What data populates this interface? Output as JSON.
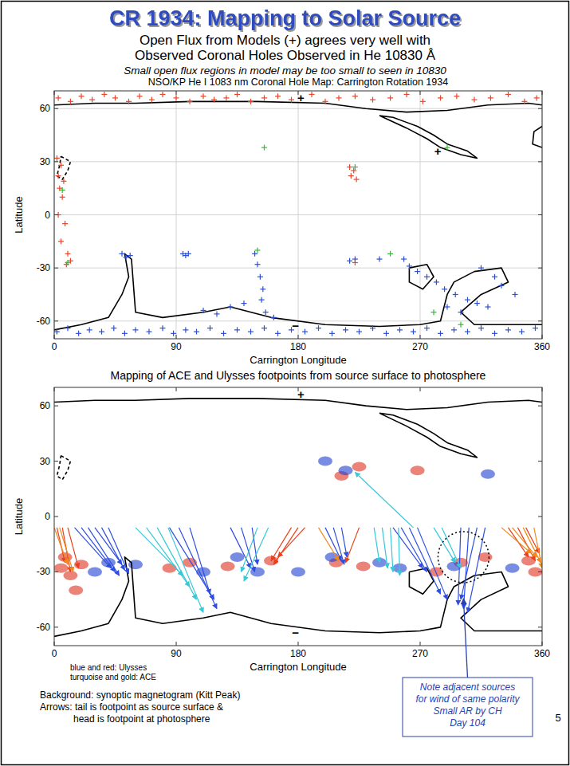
{
  "slide": {
    "title": "CR 1934: Mapping to Solar Source",
    "subtitle": [
      "Open Flux from Models (+) agrees very well with",
      "Observed Coronal Holes Observed in He 10830 Å"
    ],
    "note": "Small open flux regions in model may be too small to seen in 10830",
    "legend_notes": [
      "blue and red: Ulysses",
      "turquoise and gold: ACE"
    ],
    "caption": [
      "Background: synoptic magnetogram (Kitt Peak)",
      "Arrows: tail is footpoint as source surface &",
      "head is footpoint at photosphere"
    ],
    "callout": {
      "lines": [
        "Note adjacent sources",
        "for wind of same polarity",
        "Small AR by CH",
        "Day 104"
      ],
      "x": 302,
      "y": -22
    },
    "page_number": 5
  },
  "chart_data": [
    {
      "type": "scatter",
      "title": "NSO/KP He I 1083 nm Coronal Hole Map: Carrington Rotation 1934",
      "x_label": "Carrington Longitude",
      "y_label": "Latitude",
      "xlim": [
        0,
        360
      ],
      "ylim": [
        -70,
        70
      ],
      "xticks": [
        0,
        90,
        180,
        270,
        360
      ],
      "yticks": [
        -60,
        -30,
        0,
        30,
        60
      ],
      "grid": true,
      "annotations": [
        {
          "text": "+",
          "x": 182,
          "y": 66
        },
        {
          "text": "+",
          "x": 283,
          "y": 36
        },
        {
          "text": "−",
          "x": 178,
          "y": -63
        }
      ],
      "series": [
        {
          "type": "scatter",
          "marker": "plus",
          "color": "#e8462a",
          "x": [
            3,
            12,
            20,
            28,
            37,
            45,
            55,
            63,
            72,
            80,
            90,
            100,
            110,
            118,
            127,
            135,
            145,
            155,
            165,
            175,
            190,
            200,
            210,
            222,
            235,
            248,
            260,
            272,
            285,
            297,
            310,
            322,
            335,
            347,
            356,
            2,
            5,
            3,
            7,
            4,
            6,
            3,
            8,
            5,
            10,
            12,
            9,
            218,
            221,
            219,
            223,
            222
          ],
          "values": [
            66,
            64,
            67,
            65,
            68,
            66,
            64,
            67,
            65,
            68,
            66,
            64,
            67,
            65,
            66,
            68,
            64,
            66,
            67,
            65,
            68,
            64,
            66,
            67,
            65,
            66,
            68,
            64,
            66,
            67,
            65,
            66,
            68,
            64,
            66,
            32,
            28,
            22,
            19,
            15,
            10,
            0,
            -5,
            -15,
            -22,
            -26,
            -28,
            27,
            25,
            22,
            20,
            -27
          ]
        },
        {
          "type": "scatter",
          "marker": "plus",
          "color": "#2c4fd8",
          "x": [
            2,
            10,
            18,
            26,
            35,
            44,
            52,
            60,
            70,
            80,
            88,
            97,
            105,
            115,
            125,
            135,
            145,
            155,
            165,
            175,
            185,
            195,
            205,
            215,
            225,
            235,
            245,
            255,
            265,
            275,
            285,
            295,
            305,
            315,
            325,
            335,
            345,
            355,
            50,
            53,
            56,
            95,
            97,
            99,
            148,
            150,
            152,
            154,
            153,
            156,
            162,
            120,
            130,
            140,
            110,
            218,
            222,
            240,
            258,
            262,
            268,
            275,
            282,
            288,
            296,
            305,
            312,
            320,
            300,
            290,
            330,
            340,
            325,
            315
          ],
          "values": [
            -66,
            -64,
            -67,
            -65,
            -66,
            -64,
            -67,
            -65,
            -66,
            -64,
            -67,
            -65,
            -66,
            -64,
            -67,
            -65,
            -66,
            -64,
            -67,
            -65,
            -66,
            -64,
            -67,
            -65,
            -66,
            -64,
            -67,
            -65,
            -66,
            -64,
            -67,
            -65,
            -66,
            -64,
            -67,
            -65,
            -66,
            -64,
            -22,
            -24,
            -23,
            -22,
            -23,
            -22,
            -22,
            -28,
            -35,
            -42,
            -48,
            -55,
            -58,
            -56,
            -52,
            -50,
            -54,
            -26,
            -25,
            -25,
            -25,
            -29,
            -32,
            -35,
            -38,
            -42,
            -45,
            -48,
            -50,
            -52,
            -55,
            -52,
            -40,
            -45,
            -35,
            -30
          ]
        },
        {
          "type": "scatter",
          "marker": "plus",
          "color": "#33bb33",
          "x": [
            6,
            10,
            155,
            150,
            222,
            290,
            248,
            280,
            300
          ],
          "values": [
            14,
            -27,
            38,
            -20,
            27,
            38,
            -22,
            -55,
            -62
          ]
        },
        {
          "type": "line",
          "line_style": "solid",
          "color": "#000000",
          "x": [
            0,
            30,
            60,
            100,
            150,
            200,
            230,
            260,
            290,
            320,
            350,
            360
          ],
          "values": [
            62,
            63,
            63,
            64,
            64,
            63,
            60,
            58,
            59,
            62,
            63,
            62
          ]
        },
        {
          "type": "line",
          "line_style": "solid",
          "color": "#000000",
          "x": [
            240,
            260,
            275,
            285,
            300,
            312,
            305,
            290,
            280,
            268,
            250,
            240
          ],
          "values": [
            56,
            49,
            43,
            38,
            34,
            32,
            36,
            40,
            45,
            50,
            55,
            56
          ]
        },
        {
          "type": "line",
          "line_style": "dashed",
          "color": "#000000",
          "x": [
            5,
            12,
            10,
            6,
            2,
            4,
            5
          ],
          "values": [
            33,
            30,
            25,
            20,
            22,
            28,
            33
          ]
        },
        {
          "type": "line",
          "line_style": "solid",
          "color": "#000000",
          "x": [
            0,
            20,
            40,
            50,
            55,
            52,
            57,
            60,
            80,
            110,
            130,
            160,
            200,
            240,
            270,
            285,
            290,
            295,
            310,
            330,
            335,
            315,
            300,
            310,
            340,
            360
          ],
          "values": [
            -65,
            -62,
            -58,
            -45,
            -35,
            -22,
            -25,
            -55,
            -58,
            -55,
            -52,
            -58,
            -62,
            -63,
            -62,
            -60,
            -45,
            -38,
            -32,
            -30,
            -38,
            -45,
            -55,
            -62,
            -62,
            -62
          ]
        },
        {
          "type": "line",
          "line_style": "solid",
          "color": "#000000",
          "x": [
            262,
            275,
            280,
            272,
            262,
            262
          ],
          "values": [
            -30,
            -28,
            -35,
            -42,
            -38,
            -30
          ]
        },
        {
          "type": "line",
          "line_style": "solid",
          "color": "#000000",
          "x": [
            360,
            354,
            353,
            360
          ],
          "values": [
            50,
            47,
            40,
            38
          ]
        }
      ]
    },
    {
      "type": "scatter",
      "title": "Mapping of ACE and Ulysses footpoints from source surface to photosphere",
      "x_label": "Carrington Longitude",
      "y_label": "Latitude",
      "xlim": [
        0,
        360
      ],
      "ylim": [
        -70,
        70
      ],
      "xticks": [
        0,
        90,
        180,
        270,
        360
      ],
      "yticks": [
        -60,
        -30,
        0,
        30,
        60
      ],
      "grid": false,
      "annotations": [
        {
          "text": "+",
          "x": 182,
          "y": 66
        },
        {
          "text": "−",
          "x": 178,
          "y": -63
        }
      ],
      "series": [
        {
          "type": "blob",
          "marker": "ellipse",
          "color": "#e03020",
          "x": [
            5,
            12,
            20,
            8,
            16,
            85,
            100,
            128,
            160,
            212,
            225,
            208,
            228,
            268,
            282,
            300,
            318,
            350,
            355
          ],
          "values": [
            -28,
            -32,
            -26,
            -22,
            -40,
            -28,
            -25,
            -27,
            -24,
            22,
            27,
            -25,
            -27,
            25,
            -30,
            -25,
            -22,
            -24,
            -30
          ]
        },
        {
          "type": "blob",
          "marker": "ellipse",
          "color": "#2040d0",
          "x": [
            30,
            40,
            110,
            135,
            150,
            200,
            215,
            205,
            240,
            255,
            295,
            320,
            338,
            60,
            180
          ],
          "values": [
            -30,
            -25,
            -30,
            -22,
            -30,
            30,
            25,
            -22,
            -25,
            -28,
            -27,
            23,
            -28,
            -26,
            -30
          ]
        },
        {
          "type": "line",
          "line_style": "solid",
          "color": "#000000",
          "x": [
            0,
            30,
            60,
            100,
            150,
            200,
            230,
            260,
            290,
            320,
            350,
            360
          ],
          "values": [
            62,
            63,
            63,
            64,
            64,
            63,
            60,
            58,
            59,
            62,
            63,
            62
          ]
        },
        {
          "type": "line",
          "line_style": "solid",
          "color": "#000000",
          "x": [
            240,
            260,
            275,
            285,
            300,
            312,
            305,
            290,
            280,
            268,
            250,
            240
          ],
          "values": [
            56,
            49,
            43,
            38,
            34,
            32,
            36,
            40,
            45,
            50,
            55,
            56
          ]
        },
        {
          "type": "line",
          "line_style": "dashed",
          "color": "#000000",
          "x": [
            5,
            12,
            10,
            6,
            2,
            4,
            5
          ],
          "values": [
            33,
            30,
            25,
            20,
            22,
            28,
            33
          ]
        },
        {
          "type": "line",
          "line_style": "solid",
          "color": "#000000",
          "x": [
            0,
            20,
            40,
            50,
            55,
            52,
            57,
            60,
            80,
            110,
            130,
            160,
            200,
            240,
            270,
            285,
            290,
            295,
            310,
            330,
            335,
            315,
            300,
            310,
            340,
            360
          ],
          "values": [
            -65,
            -62,
            -58,
            -45,
            -35,
            -22,
            -25,
            -55,
            -58,
            -55,
            -52,
            -58,
            -62,
            -63,
            -62,
            -60,
            -45,
            -38,
            -32,
            -30,
            -38,
            -45,
            -55,
            -62,
            -62,
            -62
          ]
        },
        {
          "type": "line",
          "line_style": "solid",
          "color": "#000000",
          "x": [
            262,
            275,
            280,
            272,
            262,
            262
          ],
          "values": [
            -30,
            -28,
            -35,
            -42,
            -38,
            -30
          ]
        },
        {
          "type": "arrow",
          "color": "#2d4ee0",
          "tail_latitude": -6,
          "x": [
            15,
            20,
            25,
            30,
            35,
            40,
            85,
            92,
            100,
            130,
            138,
            146,
            200,
            206,
            212,
            250,
            256,
            262,
            268,
            300,
            306,
            312,
            318
          ],
          "head_x": [
            42,
            45,
            48,
            50,
            52,
            55,
            118,
            120,
            115,
            145,
            148,
            150,
            212,
            214,
            216,
            272,
            275,
            285,
            290,
            298,
            302,
            300,
            305
          ],
          "values": [
            -28,
            -30,
            -32,
            -26,
            -29,
            -31,
            -45,
            -50,
            -42,
            -28,
            -30,
            -26,
            -24,
            -26,
            -22,
            -28,
            -30,
            -42,
            -45,
            -48,
            -50,
            -45,
            -52
          ]
        },
        {
          "type": "arrow",
          "color": "#e8401c",
          "tail_latitude": -6,
          "x": [
            2,
            6,
            10,
            175,
            180,
            185,
            225,
            335,
            342,
            348
          ],
          "head_x": [
            8,
            12,
            18,
            160,
            162,
            165,
            215,
            350,
            355,
            358
          ],
          "values": [
            -25,
            -30,
            -28,
            -24,
            -26,
            -22,
            -25,
            -22,
            -24,
            -20
          ]
        },
        {
          "type": "arrow",
          "color": "#38c8d8",
          "tail_latitude": -6,
          "x": [
            60,
            68,
            76,
            84,
            150,
            158,
            236,
            242,
            248,
            254,
            265,
            280,
            286
          ],
          "head_x": [
            95,
            100,
            105,
            110,
            138,
            140,
            240,
            246,
            250,
            255,
            222,
            296,
            300
          ],
          "values": [
            -32,
            -38,
            -45,
            -52,
            -30,
            -35,
            -25,
            -28,
            -30,
            -32,
            24,
            -25,
            -28
          ]
        },
        {
          "type": "arrow",
          "color": "#f08a1c",
          "tail_latitude": -6,
          "x": [
            0,
            4,
            195,
            330,
            338,
            346,
            354
          ],
          "head_x": [
            10,
            14,
            210,
            352,
            356,
            359,
            360
          ],
          "values": [
            -26,
            -30,
            -24,
            -20,
            -22,
            -25,
            -28
          ]
        }
      ]
    }
  ]
}
